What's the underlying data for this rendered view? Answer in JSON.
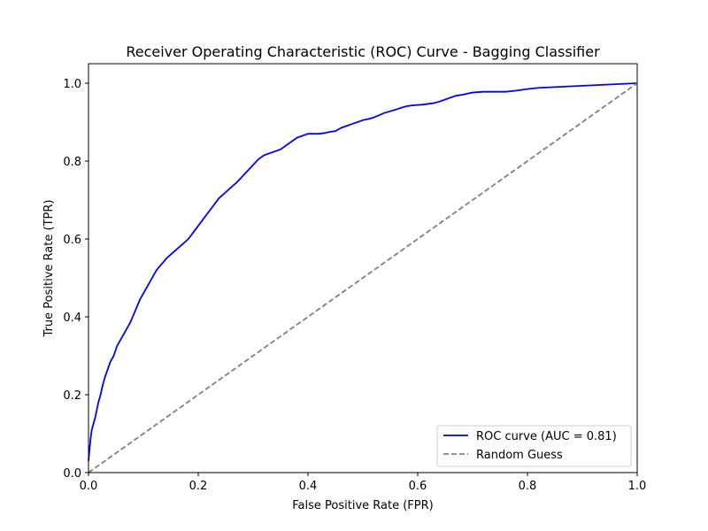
{
  "chart_data": {
    "type": "line",
    "title": "Receiver Operating Characteristic (ROC) Curve - Bagging Classifier",
    "xlabel": "False Positive Rate (FPR)",
    "ylabel": "True Positive Rate (TPR)",
    "xlim": [
      0,
      1
    ],
    "ylim": [
      0,
      1.05
    ],
    "xticks": [
      "0.0",
      "0.2",
      "0.4",
      "0.6",
      "0.8",
      "1.0"
    ],
    "yticks": [
      "0.0",
      "0.2",
      "0.4",
      "0.6",
      "0.8",
      "1.0"
    ],
    "grid": false,
    "legend_position": "lower-right",
    "series": [
      {
        "name": "ROC curve (AUC = 0.81)",
        "color": "#0000ff",
        "style": "solid",
        "x": [
          0.0,
          0.002,
          0.004,
          0.006,
          0.009,
          0.012,
          0.015,
          0.018,
          0.022,
          0.026,
          0.03,
          0.035,
          0.04,
          0.046,
          0.052,
          0.058,
          0.064,
          0.07,
          0.076,
          0.082,
          0.088,
          0.094,
          0.1,
          0.106,
          0.112,
          0.118,
          0.124,
          0.13,
          0.136,
          0.142,
          0.15,
          0.158,
          0.166,
          0.174,
          0.182,
          0.19,
          0.198,
          0.206,
          0.214,
          0.222,
          0.23,
          0.238,
          0.246,
          0.254,
          0.262,
          0.27,
          0.28,
          0.29,
          0.3,
          0.31,
          0.32,
          0.33,
          0.34,
          0.35,
          0.36,
          0.37,
          0.38,
          0.39,
          0.4,
          0.41,
          0.42,
          0.43,
          0.44,
          0.45,
          0.46,
          0.47,
          0.48,
          0.49,
          0.5,
          0.51,
          0.52,
          0.53,
          0.54,
          0.55,
          0.56,
          0.57,
          0.58,
          0.59,
          0.6,
          0.61,
          0.62,
          0.63,
          0.64,
          0.65,
          0.66,
          0.67,
          0.68,
          0.69,
          0.7,
          0.72,
          0.74,
          0.76,
          0.78,
          0.8,
          0.82,
          0.85,
          0.88,
          0.91,
          0.94,
          0.97,
          1.0
        ],
        "y": [
          0.03,
          0.06,
          0.09,
          0.11,
          0.125,
          0.14,
          0.16,
          0.18,
          0.2,
          0.225,
          0.245,
          0.265,
          0.285,
          0.3,
          0.325,
          0.34,
          0.355,
          0.37,
          0.385,
          0.405,
          0.425,
          0.445,
          0.46,
          0.475,
          0.49,
          0.505,
          0.52,
          0.53,
          0.54,
          0.55,
          0.56,
          0.57,
          0.58,
          0.59,
          0.6,
          0.615,
          0.63,
          0.645,
          0.66,
          0.675,
          0.69,
          0.705,
          0.715,
          0.725,
          0.735,
          0.745,
          0.76,
          0.775,
          0.79,
          0.805,
          0.815,
          0.82,
          0.825,
          0.83,
          0.84,
          0.85,
          0.86,
          0.865,
          0.87,
          0.87,
          0.87,
          0.872,
          0.875,
          0.877,
          0.885,
          0.89,
          0.895,
          0.9,
          0.905,
          0.908,
          0.912,
          0.918,
          0.924,
          0.928,
          0.932,
          0.937,
          0.941,
          0.943,
          0.944,
          0.945,
          0.947,
          0.949,
          0.953,
          0.958,
          0.963,
          0.968,
          0.97,
          0.973,
          0.976,
          0.978,
          0.978,
          0.978,
          0.981,
          0.985,
          0.988,
          0.99,
          0.992,
          0.994,
          0.996,
          0.998,
          1.0
        ]
      },
      {
        "name": "Random Guess",
        "color": "#808080",
        "style": "dashed",
        "x": [
          0,
          1
        ],
        "y": [
          0,
          1
        ]
      }
    ]
  }
}
